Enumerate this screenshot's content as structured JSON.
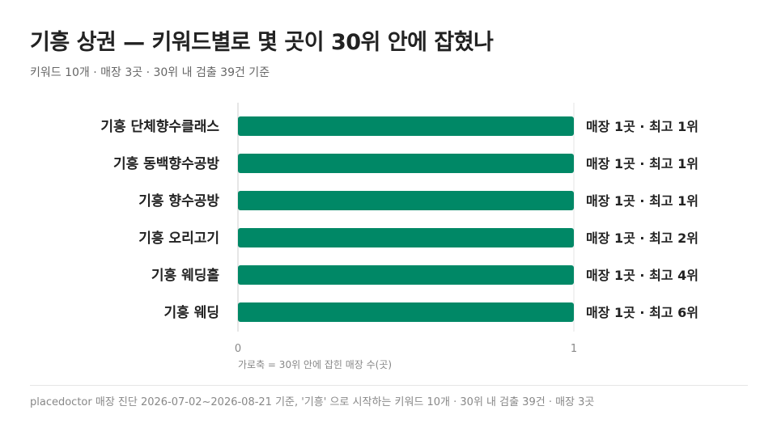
{
  "header": {
    "title": "기흥 상권 — 키워드별로 몇 곳이 30위 안에 잡혔나",
    "subtitle": "키워드 10개 · 매장 3곳 · 30위 내 검출 39건 기준"
  },
  "footer": {
    "text": "placedoctor 매장 진단 2026-07-02~2026-08-21 기준, '기흥' 으로 시작하는 키워드 10개 · 30위 내 검출 39건 · 매장 3곳"
  },
  "colors": {
    "bar": "#008866",
    "axis": "#cccccc",
    "grid": "#e6e6e6"
  },
  "chart_data": {
    "type": "bar",
    "orientation": "horizontal",
    "categories": [
      "기흥 단체향수클래스",
      "기흥 동백향수공방",
      "기흥 향수공방",
      "기흥 오리고기",
      "기흥 웨딩홀",
      "기흥 웨딩"
    ],
    "values": [
      1,
      1,
      1,
      1,
      1,
      1
    ],
    "data_labels": [
      "매장 1곳 · 최고 1위",
      "매장 1곳 · 최고 1위",
      "매장 1곳 · 최고 1위",
      "매장 1곳 · 최고 2위",
      "매장 1곳 · 최고 4위",
      "매장 1곳 · 최고 6위"
    ],
    "xlim": [
      0,
      1
    ],
    "xticks": [
      "0",
      "1"
    ],
    "xlabel": "가로축 = 30위 안에 잡힌 매장 수(곳)",
    "ylabel": "",
    "grid": true,
    "legend": "none"
  }
}
